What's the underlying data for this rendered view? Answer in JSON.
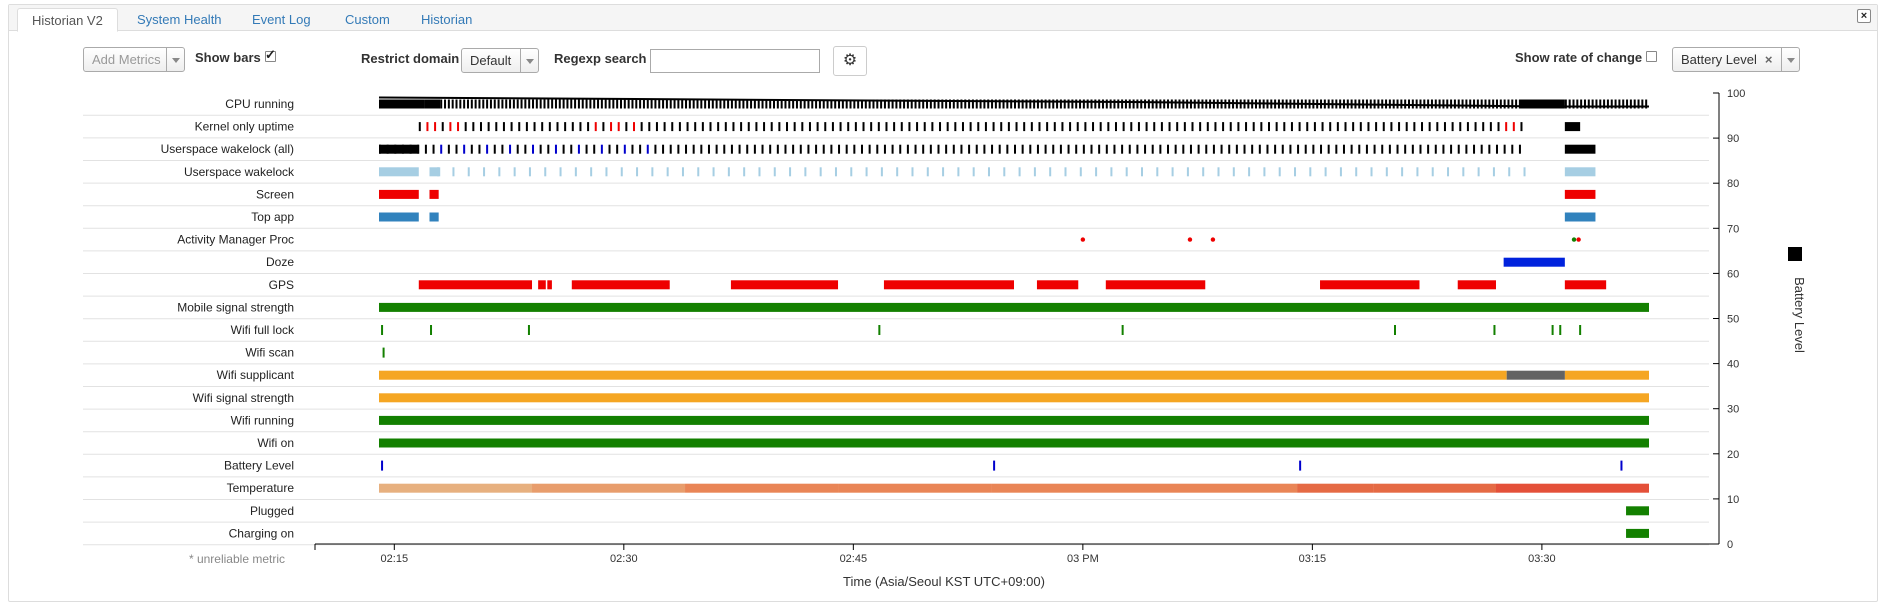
{
  "tabs": [
    {
      "label": "Historian V2",
      "active": true
    },
    {
      "label": "System Health",
      "active": false
    },
    {
      "label": "Event Log",
      "active": false
    },
    {
      "label": "Custom",
      "active": false
    },
    {
      "label": "Historian",
      "active": false
    }
  ],
  "toolbar": {
    "add_metrics_placeholder": "Add Metrics",
    "show_bars_label": "Show bars",
    "show_bars_checked": true,
    "restrict_domain_label": "Restrict domain",
    "restrict_domain_value": "Default",
    "regexp_label": "Regexp search",
    "regexp_value": "",
    "settings_icon": "gear-icon",
    "rate_label": "Show rate of change",
    "rate_checked": false,
    "metric_chip": "Battery Level",
    "chip_remove": "×"
  },
  "colors": {
    "black": "#000000",
    "red": "#ee0000",
    "blue": "#0000cc",
    "lightblue": "#a6cee3",
    "screen": "#ee0000",
    "topapp": "#3182bd",
    "green": "#138000",
    "orange": "#f5a623",
    "gray": "#636363",
    "doze": "#0022dd",
    "temp": [
      "#e7b07f",
      "#e89d6c",
      "#e98556",
      "#e56a44",
      "#e45039"
    ]
  },
  "chart_data": {
    "type": "timeline",
    "xlabel": "Time (Asia/Seoul KST UTC+09:00)",
    "ylabel": "Battery Level",
    "x_ticks": [
      "02:15",
      "02:30",
      "02:45",
      "03 PM",
      "03:15",
      "03:30"
    ],
    "x_tick_minutes": [
      135,
      150,
      165,
      180,
      195,
      210
    ],
    "x_range_minutes": [
      131,
      215
    ],
    "y_ticks": [
      "0",
      "10",
      "20",
      "30",
      "40",
      "50",
      "60",
      "70",
      "80",
      "90",
      "100"
    ],
    "ylim": [
      0,
      100
    ],
    "footnote": "* unreliable metric",
    "battery_level_line": [
      [
        134,
        99
      ],
      [
        183,
        98
      ],
      [
        211,
        97
      ],
      [
        217,
        97
      ]
    ],
    "rows": [
      {
        "label": "CPU running",
        "kind": "ticks",
        "color": "black",
        "start": 134,
        "end": 217,
        "step": 0.25,
        "solid": [
          [
            134,
            137
          ],
          [
            137,
            138
          ],
          [
            208.5,
            211.5
          ]
        ]
      },
      {
        "label": "Kernel only uptime",
        "kind": "ticks",
        "color": "black",
        "start": 136.6,
        "end": 209,
        "step": 0.5,
        "red_ranges": [
          [
            136.6,
            140
          ],
          [
            148,
            151
          ],
          [
            207,
            210
          ]
        ],
        "extra": [
          [
            211.5,
            212.5
          ]
        ]
      },
      {
        "label": "Userspace wakelock (all)",
        "kind": "ticks",
        "color": "black",
        "start": 134,
        "end": 209,
        "step": 0.5,
        "blue_ranges": [
          [
            138,
            153
          ]
        ],
        "solid": [
          [
            134,
            136.6
          ]
        ],
        "extra": [
          [
            211.5,
            213.5
          ]
        ]
      },
      {
        "label": "Userspace wakelock",
        "kind": "ticks",
        "color": "lightblue",
        "start": 137.8,
        "end": 209,
        "step": 1.0,
        "solid": [
          [
            134,
            136.6
          ],
          [
            137.3,
            138
          ]
        ],
        "extra": [
          [
            211.5,
            213.5
          ]
        ]
      },
      {
        "label": "Screen",
        "kind": "bars",
        "color": "screen",
        "bars": [
          [
            134,
            136.6
          ],
          [
            137.3,
            137.9
          ],
          [
            211.5,
            213.5
          ]
        ]
      },
      {
        "label": "Top app",
        "kind": "bars",
        "color": "topapp",
        "bars": [
          [
            134,
            136.6
          ],
          [
            137.3,
            137.9
          ],
          [
            211.5,
            213.5
          ]
        ]
      },
      {
        "label": "Activity Manager Proc",
        "kind": "dots",
        "color": "red",
        "dots": [
          180,
          187,
          188.5,
          212.1,
          212.4
        ]
      },
      {
        "label": "Doze",
        "kind": "bars",
        "color": "doze",
        "bars": [
          [
            207.5,
            211.5
          ]
        ]
      },
      {
        "label": "GPS",
        "kind": "bars",
        "color": "red",
        "bars": [
          [
            136.6,
            144
          ],
          [
            144.4,
            144.9
          ],
          [
            145,
            145.3
          ],
          [
            146.6,
            153
          ],
          [
            157,
            164
          ],
          [
            167,
            175.5
          ],
          [
            177,
            179.7
          ],
          [
            181.5,
            188
          ],
          [
            195.5,
            202
          ],
          [
            204.5,
            207
          ],
          [
            211.5,
            214.2
          ]
        ]
      },
      {
        "label": "Mobile signal strength",
        "kind": "bars",
        "color": "green",
        "bars": [
          [
            134,
            217
          ]
        ]
      },
      {
        "label": "Wifi full lock",
        "kind": "ticks_list",
        "color": "green",
        "ticks": [
          134.2,
          137.4,
          143.8,
          166.7,
          182.6,
          200.4,
          206.9,
          210.7,
          211.2,
          212.5
        ]
      },
      {
        "label": "Wifi scan",
        "kind": "ticks_list",
        "color": "green",
        "ticks": [
          134.3
        ]
      },
      {
        "label": "Wifi supplicant",
        "kind": "bars",
        "color": "orange",
        "bars": [
          [
            134,
            207.7
          ],
          [
            211.5,
            217
          ]
        ],
        "gray": [
          [
            207.7,
            211.5
          ]
        ]
      },
      {
        "label": "Wifi signal strength",
        "kind": "bars",
        "color": "orange",
        "bars": [
          [
            134,
            217
          ]
        ]
      },
      {
        "label": "Wifi running",
        "kind": "bars",
        "color": "green",
        "bars": [
          [
            134,
            217
          ]
        ]
      },
      {
        "label": "Wifi on",
        "kind": "bars",
        "color": "green",
        "bars": [
          [
            134,
            217
          ]
        ]
      },
      {
        "label": "Battery Level",
        "kind": "ticks_list",
        "color": "blue",
        "ticks": [
          134.2,
          174.2,
          194.2,
          215.2
        ]
      },
      {
        "label": "Temperature",
        "kind": "gradient",
        "bars": [
          [
            134,
            144
          ],
          [
            144,
            154
          ],
          [
            154,
            164
          ],
          [
            164,
            174
          ],
          [
            174,
            194
          ],
          [
            194,
            199
          ],
          [
            199,
            207
          ],
          [
            207,
            217
          ]
        ],
        "shades": [
          0,
          1,
          2,
          2,
          2,
          3,
          3,
          4
        ]
      },
      {
        "label": "Plugged",
        "kind": "bars",
        "color": "green",
        "bars": [
          [
            215.5,
            217
          ]
        ]
      },
      {
        "label": "Charging on",
        "kind": "bars",
        "color": "green",
        "bars": [
          [
            215.5,
            217
          ]
        ]
      }
    ]
  }
}
